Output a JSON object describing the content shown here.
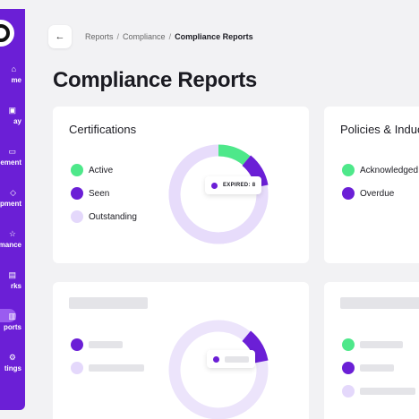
{
  "colors": {
    "primary": "#6b1fd6",
    "active": "#4ee88a",
    "seen": "#6b1fd6",
    "outstanding": "#e4d8fb",
    "skeleton": "#e4e4e8"
  },
  "sidebar": {
    "items": [
      {
        "label": "me",
        "icon": "home-icon"
      },
      {
        "label": "ay",
        "icon": "pay-icon"
      },
      {
        "label": "agement",
        "icon": "management-icon"
      },
      {
        "label": "opment",
        "icon": "development-icon"
      },
      {
        "label": "rmance",
        "icon": "performance-icon"
      },
      {
        "label": "rks",
        "icon": "perks-icon"
      },
      {
        "label": "ports",
        "icon": "reports-icon"
      },
      {
        "label": "tings",
        "icon": "settings-icon"
      }
    ]
  },
  "header": {
    "back_icon": "←",
    "breadcrumb": [
      "Reports",
      "Compliance",
      "Compliance Reports"
    ],
    "separator": "/",
    "title": "Compliance Reports"
  },
  "certifications": {
    "title": "Certifications",
    "legend": [
      "Active",
      "Seen",
      "Outstanding"
    ],
    "tooltip": "EXPIRED: 8",
    "segments": {
      "active": 0.11,
      "seen": 0.11,
      "outstanding": 0.78
    }
  },
  "policies": {
    "title": "Policies & Induc",
    "legend": [
      "Acknowledged",
      "Overdue"
    ]
  },
  "loading_card": {
    "segments": {
      "seen": 0.11,
      "outstanding": 0.89
    }
  }
}
